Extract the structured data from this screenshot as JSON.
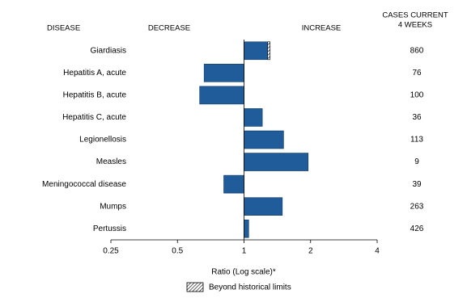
{
  "chart_data": {
    "type": "bar",
    "orientation": "horizontal",
    "xscale": "log",
    "headers": {
      "disease": "DISEASE",
      "decrease": "DECREASE",
      "increase": "INCREASE",
      "cases": [
        "CASES CURRENT",
        "4 WEEKS"
      ]
    },
    "categories": [
      "Giardiasis",
      "Hepatitis A, acute",
      "Hepatitis B, acute",
      "Hepatitis C, acute",
      "Legionellosis",
      "Measles",
      "Meningococcal disease",
      "Mumps",
      "Pertussis"
    ],
    "values": [
      1.31,
      0.66,
      0.63,
      1.21,
      1.51,
      1.95,
      0.81,
      1.49,
      1.05
    ],
    "historical_limits": [
      1.28,
      null,
      null,
      null,
      null,
      null,
      null,
      null,
      null
    ],
    "cases": [
      860,
      76,
      100,
      36,
      113,
      9,
      39,
      263,
      426
    ],
    "color": "#1f5c99",
    "xlim": [
      0.25,
      4
    ],
    "xticks": [
      0.25,
      0.5,
      1,
      2,
      4
    ],
    "x_label": "Ratio (Log scale)*",
    "legend_label": "Beyond historical limits"
  }
}
